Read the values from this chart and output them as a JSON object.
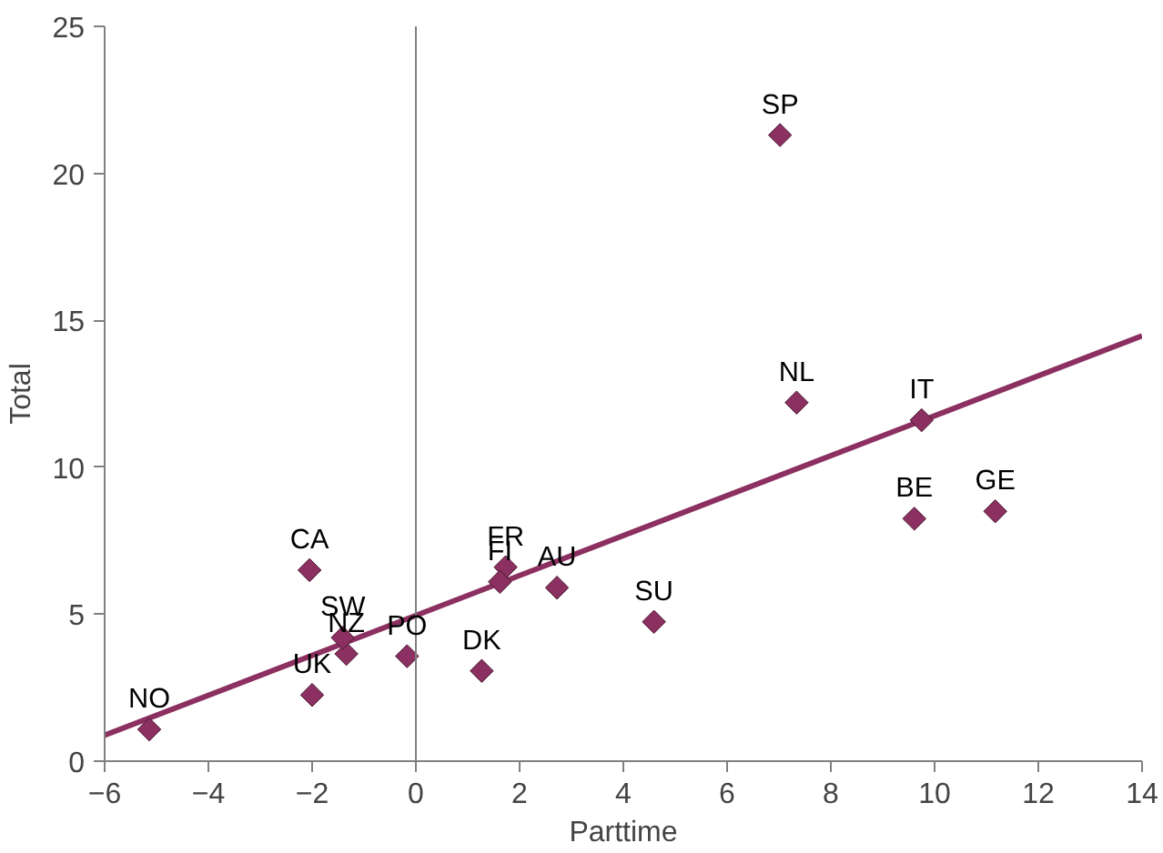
{
  "chart_data": {
    "type": "scatter",
    "xlabel": "Parttime",
    "ylabel": "Total",
    "xlim": [
      -6,
      14
    ],
    "ylim": [
      0,
      25
    ],
    "xticks": [
      -6,
      -4,
      -2,
      0,
      2,
      4,
      6,
      8,
      10,
      12,
      14
    ],
    "yticks": [
      0,
      5,
      10,
      15,
      20,
      25
    ],
    "grid": false,
    "marker": "diamond",
    "series": [
      {
        "color": "#8b3060",
        "x": [
          7.02,
          7.34,
          9.75,
          9.61,
          11.17,
          2.72,
          4.59,
          1.27,
          1.73,
          1.62,
          -2.05,
          -5.14,
          -2.0,
          -1.34,
          -1.41,
          -0.17
        ],
        "values": [
          21.3,
          12.2,
          11.6,
          8.25,
          8.5,
          5.9,
          4.74,
          3.07,
          6.6,
          6.1,
          6.5,
          1.08,
          2.25,
          3.65,
          4.2,
          3.57
        ]
      },
      {
        "type": "line",
        "marker": "none",
        "color": "#8b3060",
        "x": [
          -6,
          14
        ],
        "values": [
          0.88,
          14.47
        ]
      }
    ],
    "ref_lines": [
      {
        "axis": "x",
        "value": 0,
        "color": "#808080"
      }
    ],
    "annotations": [
      {
        "text": "SP",
        "x": 7.02,
        "y": 21.3
      },
      {
        "text": "NL",
        "x": 7.34,
        "y": 12.2
      },
      {
        "text": "IT",
        "x": 9.75,
        "y": 11.6
      },
      {
        "text": "BE",
        "x": 9.61,
        "y": 8.25
      },
      {
        "text": "GE",
        "x": 11.17,
        "y": 8.5
      },
      {
        "text": "AU",
        "x": 2.72,
        "y": 5.9
      },
      {
        "text": "SU",
        "x": 4.59,
        "y": 4.74
      },
      {
        "text": "DK",
        "x": 1.27,
        "y": 3.07
      },
      {
        "text": "FR",
        "x": 1.73,
        "y": 6.6
      },
      {
        "text": "FI",
        "x": 1.62,
        "y": 6.1
      },
      {
        "text": "CA",
        "x": -2.05,
        "y": 6.5
      },
      {
        "text": "NO",
        "x": -5.14,
        "y": 1.08
      },
      {
        "text": "UK",
        "x": -2.0,
        "y": 2.25
      },
      {
        "text": "NZ",
        "x": -1.34,
        "y": 3.65
      },
      {
        "text": "SW",
        "x": -1.41,
        "y": 4.2
      },
      {
        "text": "PO",
        "x": -0.17,
        "y": 3.57
      }
    ]
  }
}
